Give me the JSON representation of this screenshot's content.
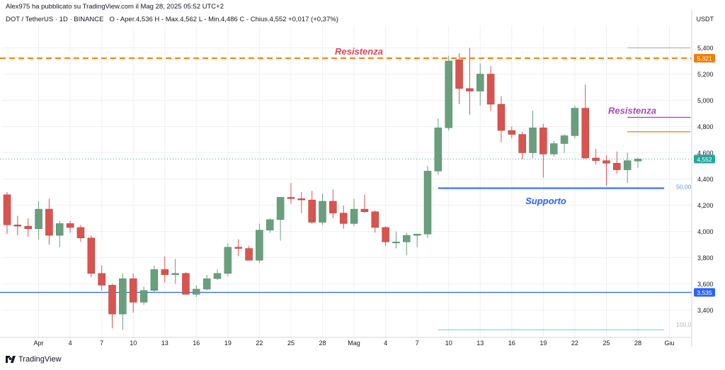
{
  "header": {
    "publisher_text": "Alex975 ha pubblicato su TradingView.com il Mag 28, 2025 05:52 UTC+2",
    "symbol": "DOT / TetherUS · 1D · BINANCE",
    "ohlc_text": "O - Aper.4,536  H - Max.4,562  L - Min.4,486  C - Chius.4,552  +0,017 (+0,37%)",
    "currency": "USDT"
  },
  "footer": {
    "brand": "TradingView"
  },
  "chart_data": {
    "type": "candlestick",
    "title": "DOT / TetherUS · 1D · BINANCE",
    "ylabel": "USDT",
    "ylim": [
      3.2,
      5.6
    ],
    "y_ticks": [
      "3,400",
      "3,600",
      "3,800",
      "4,000",
      "4,200",
      "4,400",
      "4,600",
      "4,800",
      "5,000",
      "5,200",
      "5,400"
    ],
    "x_ticks": [
      {
        "index": 3,
        "label": "Apr"
      },
      {
        "index": 6,
        "label": "4"
      },
      {
        "index": 9,
        "label": "7"
      },
      {
        "index": 12,
        "label": "10"
      },
      {
        "index": 15,
        "label": "13"
      },
      {
        "index": 18,
        "label": "16"
      },
      {
        "index": 21,
        "label": "19"
      },
      {
        "index": 24,
        "label": "22"
      },
      {
        "index": 27,
        "label": "25"
      },
      {
        "index": 30,
        "label": "28"
      },
      {
        "index": 33,
        "label": "Mag"
      },
      {
        "index": 36,
        "label": "4"
      },
      {
        "index": 39,
        "label": "7"
      },
      {
        "index": 42,
        "label": "10"
      },
      {
        "index": 45,
        "label": "13"
      },
      {
        "index": 48,
        "label": "16"
      },
      {
        "index": 51,
        "label": "19"
      },
      {
        "index": 54,
        "label": "22"
      },
      {
        "index": 57,
        "label": "25"
      },
      {
        "index": 60,
        "label": "28"
      },
      {
        "index": 63,
        "label": "Giu"
      }
    ],
    "candles": [
      {
        "o": 4.28,
        "h": 4.3,
        "l": 3.98,
        "c": 4.05
      },
      {
        "o": 4.05,
        "h": 4.12,
        "l": 3.97,
        "c": 4.04
      },
      {
        "o": 4.04,
        "h": 4.1,
        "l": 3.96,
        "c": 4.02
      },
      {
        "o": 4.02,
        "h": 4.23,
        "l": 3.94,
        "c": 4.17
      },
      {
        "o": 4.17,
        "h": 4.25,
        "l": 3.9,
        "c": 3.97
      },
      {
        "o": 3.97,
        "h": 4.08,
        "l": 3.88,
        "c": 4.06
      },
      {
        "o": 4.06,
        "h": 4.08,
        "l": 3.99,
        "c": 4.03
      },
      {
        "o": 4.03,
        "h": 4.05,
        "l": 3.92,
        "c": 3.95
      },
      {
        "o": 3.95,
        "h": 3.97,
        "l": 3.65,
        "c": 3.68
      },
      {
        "o": 3.68,
        "h": 3.74,
        "l": 3.55,
        "c": 3.59
      },
      {
        "o": 3.59,
        "h": 3.6,
        "l": 3.26,
        "c": 3.37
      },
      {
        "o": 3.37,
        "h": 3.68,
        "l": 3.25,
        "c": 3.64
      },
      {
        "o": 3.64,
        "h": 3.68,
        "l": 3.38,
        "c": 3.46
      },
      {
        "o": 3.46,
        "h": 3.58,
        "l": 3.44,
        "c": 3.55
      },
      {
        "o": 3.55,
        "h": 3.74,
        "l": 3.53,
        "c": 3.71
      },
      {
        "o": 3.71,
        "h": 3.81,
        "l": 3.61,
        "c": 3.67
      },
      {
        "o": 3.67,
        "h": 3.79,
        "l": 3.6,
        "c": 3.68
      },
      {
        "o": 3.68,
        "h": 3.69,
        "l": 3.52,
        "c": 3.52
      },
      {
        "o": 3.52,
        "h": 3.59,
        "l": 3.5,
        "c": 3.56
      },
      {
        "o": 3.56,
        "h": 3.67,
        "l": 3.55,
        "c": 3.64
      },
      {
        "o": 3.64,
        "h": 3.71,
        "l": 3.63,
        "c": 3.68
      },
      {
        "o": 3.68,
        "h": 3.91,
        "l": 3.66,
        "c": 3.88
      },
      {
        "o": 3.88,
        "h": 3.94,
        "l": 3.81,
        "c": 3.87
      },
      {
        "o": 3.87,
        "h": 3.89,
        "l": 3.78,
        "c": 3.78
      },
      {
        "o": 3.78,
        "h": 4.06,
        "l": 3.76,
        "c": 4.01
      },
      {
        "o": 4.01,
        "h": 4.1,
        "l": 3.99,
        "c": 4.09
      },
      {
        "o": 4.09,
        "h": 4.26,
        "l": 3.93,
        "c": 4.26
      },
      {
        "o": 4.26,
        "h": 4.37,
        "l": 4.21,
        "c": 4.25
      },
      {
        "o": 4.25,
        "h": 4.3,
        "l": 4.14,
        "c": 4.24
      },
      {
        "o": 4.24,
        "h": 4.31,
        "l": 4.06,
        "c": 4.07
      },
      {
        "o": 4.07,
        "h": 4.29,
        "l": 4.05,
        "c": 4.23
      },
      {
        "o": 4.23,
        "h": 4.32,
        "l": 4.1,
        "c": 4.14
      },
      {
        "o": 4.14,
        "h": 4.2,
        "l": 4.02,
        "c": 4.06
      },
      {
        "o": 4.06,
        "h": 4.25,
        "l": 4.04,
        "c": 4.17
      },
      {
        "o": 4.17,
        "h": 4.28,
        "l": 4.14,
        "c": 4.15
      },
      {
        "o": 4.15,
        "h": 4.16,
        "l": 3.99,
        "c": 4.03
      },
      {
        "o": 4.03,
        "h": 4.04,
        "l": 3.89,
        "c": 3.92
      },
      {
        "o": 3.92,
        "h": 4.0,
        "l": 3.87,
        "c": 3.92
      },
      {
        "o": 3.92,
        "h": 3.99,
        "l": 3.82,
        "c": 3.97
      },
      {
        "o": 3.97,
        "h": 3.98,
        "l": 3.88,
        "c": 3.98
      },
      {
        "o": 3.98,
        "h": 4.5,
        "l": 3.95,
        "c": 4.46
      },
      {
        "o": 4.46,
        "h": 4.86,
        "l": 4.43,
        "c": 4.79
      },
      {
        "o": 4.79,
        "h": 5.34,
        "l": 4.77,
        "c": 5.3
      },
      {
        "o": 5.31,
        "h": 5.36,
        "l": 4.97,
        "c": 5.09
      },
      {
        "o": 5.09,
        "h": 5.4,
        "l": 4.89,
        "c": 5.07
      },
      {
        "o": 5.07,
        "h": 5.28,
        "l": 4.96,
        "c": 5.2
      },
      {
        "o": 5.2,
        "h": 5.26,
        "l": 4.92,
        "c": 4.97
      },
      {
        "o": 4.97,
        "h": 5.03,
        "l": 4.68,
        "c": 4.77
      },
      {
        "o": 4.77,
        "h": 4.8,
        "l": 4.71,
        "c": 4.74
      },
      {
        "o": 4.74,
        "h": 4.76,
        "l": 4.55,
        "c": 4.6
      },
      {
        "o": 4.6,
        "h": 4.92,
        "l": 4.56,
        "c": 4.79
      },
      {
        "o": 4.79,
        "h": 4.82,
        "l": 4.41,
        "c": 4.59
      },
      {
        "o": 4.59,
        "h": 4.69,
        "l": 4.57,
        "c": 4.67
      },
      {
        "o": 4.67,
        "h": 4.74,
        "l": 4.6,
        "c": 4.73
      },
      {
        "o": 4.73,
        "h": 4.96,
        "l": 4.71,
        "c": 4.94
      },
      {
        "o": 4.94,
        "h": 5.12,
        "l": 4.55,
        "c": 4.56
      },
      {
        "o": 4.56,
        "h": 4.63,
        "l": 4.51,
        "c": 4.54
      },
      {
        "o": 4.54,
        "h": 4.58,
        "l": 4.35,
        "c": 4.52
      },
      {
        "o": 4.52,
        "h": 4.61,
        "l": 4.44,
        "c": 4.47
      },
      {
        "o": 4.47,
        "h": 4.6,
        "l": 4.37,
        "c": 4.54
      },
      {
        "o": 4.536,
        "h": 4.562,
        "l": 4.486,
        "c": 4.552
      }
    ],
    "horizontal_lines": [
      {
        "value": 5.321,
        "color": "#f57c00",
        "style": "dashed",
        "label": "5,321"
      },
      {
        "value": 3.535,
        "color": "#2962ff",
        "style": "solid",
        "label": "3,535"
      },
      {
        "value": 4.552,
        "color": "#26a69a",
        "style": "dotted",
        "label": "4,552"
      }
    ],
    "annotations": [
      {
        "text": "Resistenza",
        "color": "#e0455a",
        "y": 5.37
      },
      {
        "text": "Resistenza",
        "color": "#ab47bc",
        "y": 4.92
      },
      {
        "text": "Supporto",
        "color": "#2962ff",
        "y": 4.23
      }
    ],
    "segments": [
      {
        "x0": 59.0,
        "x1": 65.0,
        "y": 4.87,
        "color": "#ab47bc"
      },
      {
        "x0": 59.0,
        "x1": 65.0,
        "y": 4.76,
        "color": "#f57c00"
      },
      {
        "x0": 59.0,
        "x1": 65.0,
        "y": 5.4,
        "color": "#b2b5be"
      },
      {
        "x0": 41.0,
        "x1": 62.5,
        "y": 4.33,
        "color": "#2962ff"
      },
      {
        "x0": 41.0,
        "x1": 62.5,
        "y": 3.25,
        "color": "#90caf9"
      }
    ],
    "fib_labels": [
      {
        "text": "50,00",
        "y": 4.34
      },
      {
        "text": "100,0",
        "y": 3.29
      }
    ],
    "colors": {
      "up": "#6a9f7d",
      "down": "#d9534f",
      "grid": "#eef0f4"
    }
  }
}
